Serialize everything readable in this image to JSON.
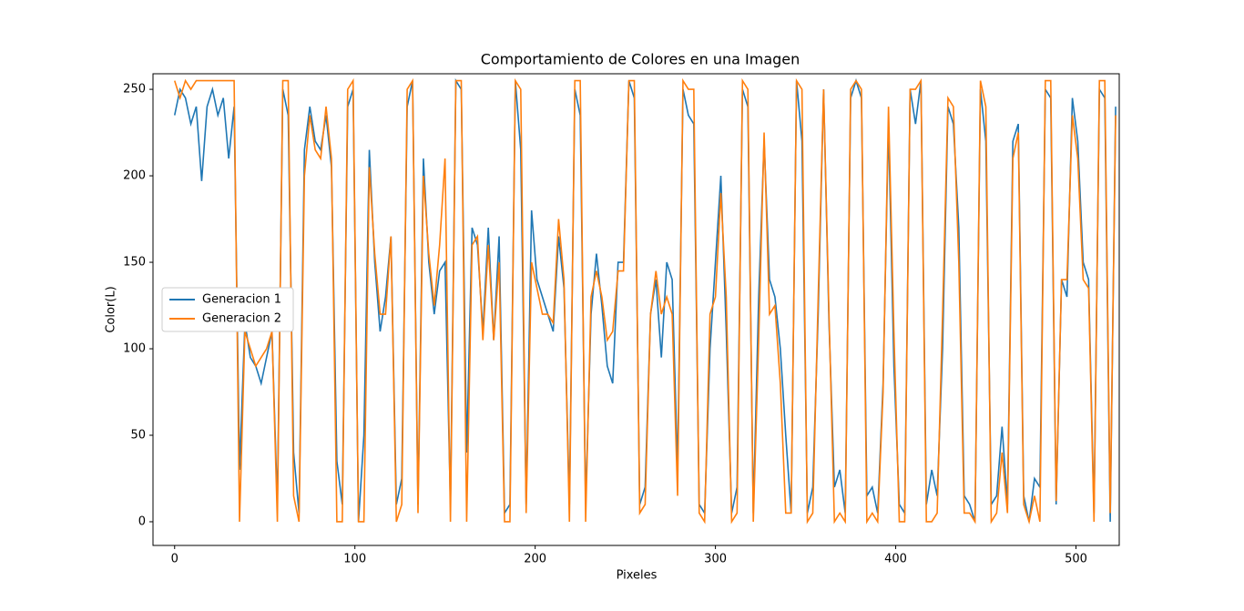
{
  "chart_data": {
    "type": "line",
    "title": "Comportamiento de Colores en una Imagen",
    "x_label": "Pixeles",
    "y_label": "Color(L)",
    "x": [
      0,
      3,
      6,
      9,
      12,
      15,
      18,
      21,
      24,
      27,
      30,
      33,
      36,
      39,
      42,
      45,
      48,
      51,
      54,
      57,
      60,
      63,
      66,
      69,
      72,
      75,
      78,
      81,
      84,
      87,
      90,
      93,
      96,
      99,
      102,
      105,
      108,
      111,
      114,
      117,
      120,
      123,
      126,
      129,
      132,
      135,
      138,
      141,
      144,
      147,
      150,
      153,
      156,
      159,
      162,
      165,
      168,
      171,
      174,
      177,
      180,
      183,
      186,
      189,
      192,
      195,
      198,
      201,
      204,
      207,
      210,
      213,
      216,
      219,
      222,
      225,
      228,
      231,
      234,
      237,
      240,
      243,
      246,
      249,
      252,
      255,
      258,
      261,
      264,
      267,
      270,
      273,
      276,
      279,
      282,
      285,
      288,
      291,
      294,
      297,
      300,
      303,
      306,
      309,
      312,
      315,
      318,
      321,
      324,
      327,
      330,
      333,
      336,
      339,
      342,
      345,
      348,
      351,
      354,
      357,
      360,
      363,
      366,
      369,
      372,
      375,
      378,
      381,
      384,
      387,
      390,
      393,
      396,
      399,
      402,
      405,
      408,
      411,
      414,
      417,
      420,
      423,
      426,
      429,
      432,
      435,
      438,
      441,
      444,
      447,
      450,
      453,
      456,
      459,
      462,
      465,
      468,
      471,
      474,
      477,
      480,
      483,
      486,
      489,
      492,
      495,
      498,
      501,
      504,
      507,
      510,
      513,
      516,
      519,
      522
    ],
    "series": [
      {
        "name": "Generacion 1",
        "color": "#1f77b4",
        "values": [
          235,
          250,
          245,
          230,
          240,
          197,
          240,
          250,
          235,
          245,
          210,
          240,
          30,
          115,
          95,
          90,
          80,
          95,
          110,
          10,
          250,
          235,
          40,
          5,
          215,
          240,
          220,
          215,
          235,
          205,
          35,
          10,
          240,
          250,
          0,
          50,
          215,
          150,
          110,
          130,
          165,
          10,
          25,
          240,
          255,
          10,
          210,
          150,
          120,
          145,
          150,
          10,
          255,
          250,
          40,
          170,
          160,
          110,
          170,
          105,
          165,
          5,
          10,
          255,
          215,
          10,
          180,
          140,
          130,
          120,
          110,
          165,
          135,
          10,
          250,
          235,
          10,
          120,
          155,
          125,
          90,
          80,
          150,
          150,
          255,
          245,
          10,
          20,
          120,
          140,
          95,
          150,
          140,
          30,
          250,
          235,
          230,
          10,
          5,
          100,
          150,
          200,
          110,
          5,
          20,
          250,
          240,
          5,
          130,
          220,
          140,
          130,
          100,
          50,
          5,
          255,
          220,
          5,
          20,
          120,
          250,
          115,
          20,
          30,
          5,
          245,
          255,
          245,
          15,
          20,
          5,
          80,
          230,
          90,
          10,
          5,
          250,
          230,
          255,
          10,
          30,
          15,
          100,
          240,
          230,
          170,
          15,
          10,
          0,
          250,
          220,
          10,
          15,
          55,
          10,
          220,
          230,
          15,
          0,
          25,
          20,
          250,
          245,
          10,
          140,
          130,
          245,
          220,
          150,
          140,
          5,
          250,
          245,
          0,
          240
        ]
      },
      {
        "name": "Generacion 2",
        "color": "#ff7f0e",
        "values": [
          255,
          245,
          255,
          250,
          255,
          255,
          255,
          255,
          255,
          255,
          255,
          255,
          0,
          110,
          100,
          90,
          95,
          100,
          110,
          0,
          255,
          255,
          15,
          0,
          200,
          235,
          215,
          210,
          240,
          210,
          0,
          0,
          250,
          255,
          0,
          0,
          205,
          155,
          120,
          120,
          165,
          0,
          10,
          250,
          255,
          5,
          200,
          155,
          125,
          160,
          210,
          0,
          255,
          255,
          0,
          160,
          165,
          105,
          160,
          105,
          150,
          0,
          0,
          255,
          250,
          5,
          150,
          135,
          120,
          120,
          115,
          175,
          140,
          0,
          255,
          255,
          0,
          130,
          145,
          130,
          105,
          110,
          145,
          145,
          255,
          255,
          5,
          10,
          120,
          145,
          120,
          130,
          120,
          15,
          255,
          250,
          250,
          5,
          0,
          120,
          130,
          190,
          130,
          0,
          5,
          255,
          250,
          0,
          105,
          225,
          120,
          125,
          80,
          5,
          5,
          255,
          250,
          0,
          5,
          130,
          250,
          120,
          0,
          5,
          0,
          250,
          255,
          250,
          0,
          5,
          0,
          75,
          240,
          110,
          0,
          0,
          250,
          250,
          255,
          0,
          0,
          5,
          120,
          245,
          240,
          150,
          5,
          5,
          0,
          255,
          240,
          0,
          5,
          40,
          5,
          210,
          225,
          10,
          0,
          15,
          0,
          255,
          255,
          12,
          140,
          140,
          235,
          210,
          140,
          135,
          0,
          255,
          255,
          5,
          235
        ]
      }
    ],
    "xlim": [
      -12,
      524
    ],
    "ylim": [
      -13.7,
      259
    ],
    "xticks": [
      0,
      100,
      200,
      300,
      400,
      500
    ],
    "yticks": [
      0,
      50,
      100,
      150,
      200,
      250
    ],
    "legend": "center left"
  }
}
